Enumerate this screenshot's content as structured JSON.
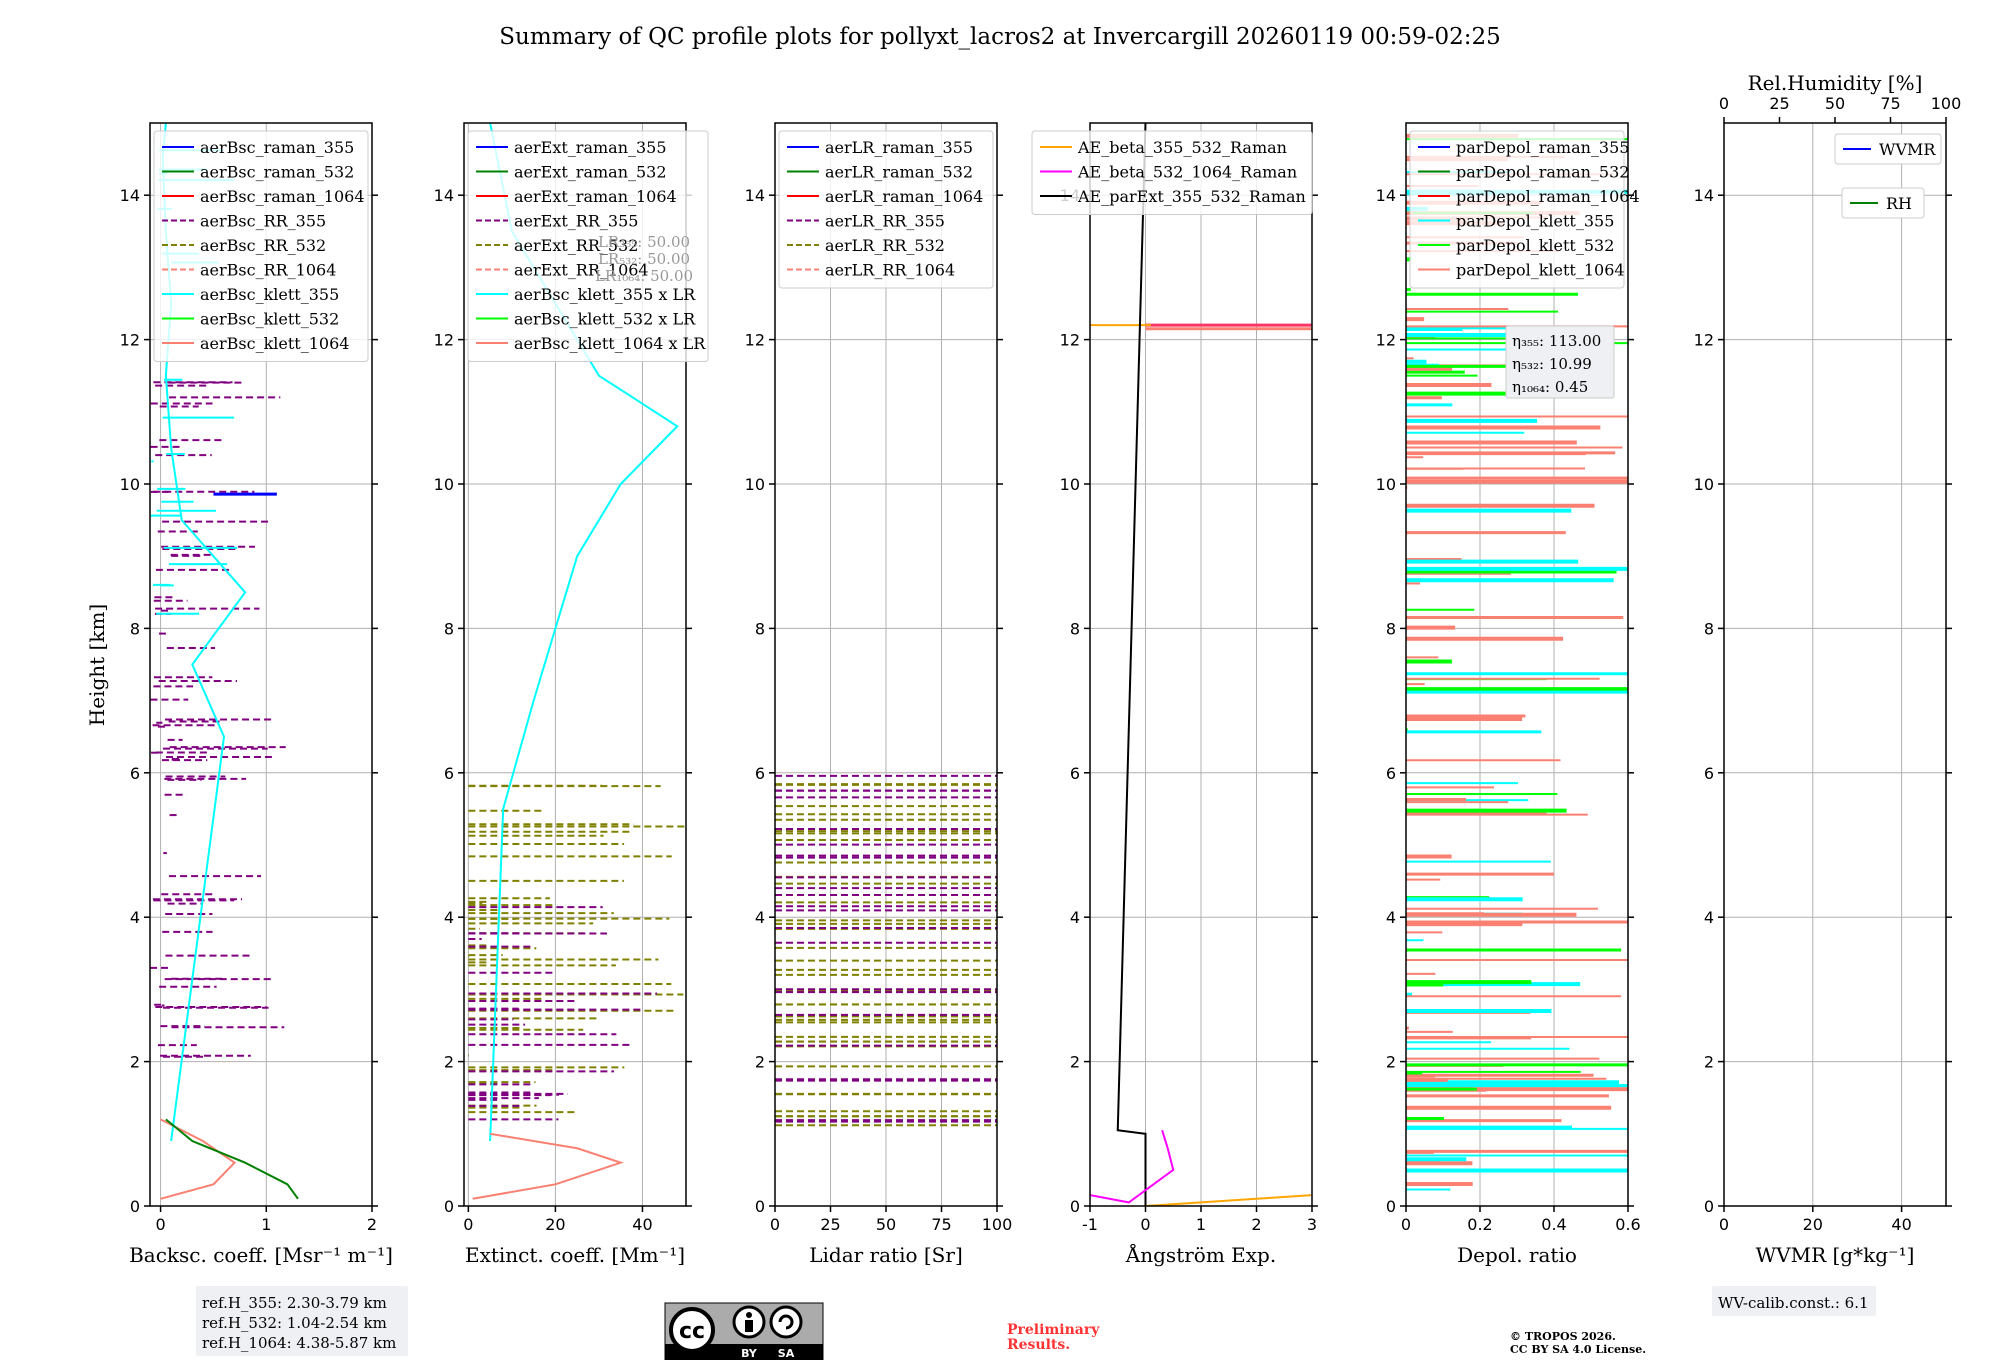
{
  "chart_data": {
    "type": "line",
    "title": "Summary of QC profile plots for pollyxt_lacros2 at Invercargill 20260119 00:59-02:25",
    "ylabel": "Height [km]",
    "ylim": [
      0,
      15
    ],
    "yticks": [
      0,
      2,
      4,
      6,
      8,
      10,
      12,
      14
    ],
    "grid": true,
    "panels": [
      {
        "id": "bsc",
        "xlabel": "Backsc. coeff. [Msr⁻¹ m⁻¹]",
        "xlim": [
          -0.1,
          2
        ],
        "xticks": [
          0,
          1,
          2
        ],
        "legend": [
          {
            "label": "aerBsc_raman_355",
            "color": "#0000ff",
            "dash": false
          },
          {
            "label": "aerBsc_raman_532",
            "color": "#008000",
            "dash": false
          },
          {
            "label": "aerBsc_raman_1064",
            "color": "#ff0000",
            "dash": false
          },
          {
            "label": "aerBsc_RR_355",
            "color": "#800080",
            "dash": true
          },
          {
            "label": "aerBsc_RR_532",
            "color": "#808000",
            "dash": true
          },
          {
            "label": "aerBsc_RR_1064",
            "color": "#fa8072",
            "dash": true
          },
          {
            "label": "aerBsc_klett_355",
            "color": "#00ffff",
            "dash": false
          },
          {
            "label": "aerBsc_klett_532",
            "color": "#00ff00",
            "dash": false
          },
          {
            "label": "aerBsc_klett_1064",
            "color": "#fa8072",
            "dash": false
          }
        ],
        "series": [
          {
            "name": "aerBsc_klett_355",
            "color": "#00ffff",
            "x": [
              0.1,
              0.6,
              0.3,
              0.8,
              0.2,
              0.1,
              0.05,
              0.1,
              0.05,
              0.02,
              0.05
            ],
            "y": [
              0.9,
              6.5,
              7.5,
              8.5,
              9.5,
              10.5,
              11.5,
              12.5,
              13.5,
              14.5,
              15
            ]
          },
          {
            "name": "aerBsc_klett_1064",
            "color": "#fa8072",
            "x": [
              0.0,
              0.5,
              0.7,
              0.4,
              0.0
            ],
            "y": [
              0.1,
              0.3,
              0.6,
              0.9,
              1.2
            ]
          },
          {
            "name": "aerBsc_raman_532",
            "color": "#008000",
            "x": [
              1.3,
              1.2,
              0.8,
              0.3,
              0.05
            ],
            "y": [
              0.1,
              0.3,
              0.6,
              0.9,
              1.2
            ]
          }
        ],
        "annotation": {
          "lines": [
            "ref.H_355: 2.30-3.79 km",
            "ref.H_532: 1.04-2.54 km",
            "ref.H_1064: 4.38-5.87 km"
          ]
        }
      },
      {
        "id": "ext",
        "xlabel": "Extinct. coeff. [Mm⁻¹]",
        "xlim": [
          -1,
          50
        ],
        "xticks": [
          0,
          20,
          40
        ],
        "legend": [
          {
            "label": "aerExt_raman_355",
            "color": "#0000ff",
            "dash": false
          },
          {
            "label": "aerExt_raman_532",
            "color": "#008000",
            "dash": false
          },
          {
            "label": "aerExt_raman_1064",
            "color": "#ff0000",
            "dash": false
          },
          {
            "label": "aerExt_RR_355",
            "color": "#800080",
            "dash": true
          },
          {
            "label": "aerExt_RR_532",
            "color": "#808000",
            "dash": true
          },
          {
            "label": "aerExt_RR_1064",
            "color": "#fa8072",
            "dash": true
          },
          {
            "label": "aerBsc_klett_355 x LR",
            "color": "#00ffff",
            "dash": false
          },
          {
            "label": "aerBsc_klett_532 x LR",
            "color": "#00ff00",
            "dash": false
          },
          {
            "label": "aerBsc_klett_1064 x LR",
            "color": "#fa8072",
            "dash": false
          }
        ],
        "series": [
          {
            "name": "aerBsc_klett_355 x LR",
            "color": "#00ffff",
            "x": [
              5,
              8,
              15,
              20,
              25,
              35,
              48,
              30,
              20,
              10,
              5
            ],
            "y": [
              0.9,
              5.5,
              7,
              8,
              9,
              10,
              10.8,
              11.5,
              12.5,
              13.5,
              15
            ]
          },
          {
            "name": "aerBsc_klett_1064 x LR",
            "color": "#fa8072",
            "x": [
              1,
              20,
              35,
              25,
              5
            ],
            "y": [
              0.1,
              0.3,
              0.6,
              0.8,
              1.0
            ]
          }
        ],
        "lr_labels": [
          "LR₃₅₅: 50.00",
          "LR₅₃₂: 50.00",
          "LR₁₀₆₄: 50.00"
        ]
      },
      {
        "id": "lr",
        "xlabel": "Lidar ratio [Sr]",
        "xlim": [
          0,
          100
        ],
        "xticks": [
          0,
          25,
          50,
          75,
          100
        ],
        "legend": [
          {
            "label": "aerLR_raman_355",
            "color": "#0000ff",
            "dash": false
          },
          {
            "label": "aerLR_raman_532",
            "color": "#008000",
            "dash": false
          },
          {
            "label": "aerLR_raman_1064",
            "color": "#ff0000",
            "dash": false
          },
          {
            "label": "aerLR_RR_355",
            "color": "#800080",
            "dash": true
          },
          {
            "label": "aerLR_RR_532",
            "color": "#808000",
            "dash": true
          },
          {
            "label": "aerLR_RR_1064",
            "color": "#fa8072",
            "dash": true
          }
        ],
        "series": []
      },
      {
        "id": "ae",
        "xlabel": "Ångström Exp.",
        "xlim": [
          -1,
          3
        ],
        "xticks": [
          -1,
          0,
          1,
          2,
          3
        ],
        "legend": [
          {
            "label": "AE_beta_355_532_Raman",
            "color": "#ffa500",
            "dash": false
          },
          {
            "label": "AE_beta_532_1064_Raman",
            "color": "#ff00ff",
            "dash": false
          },
          {
            "label": "AE_parExt_355_532_Raman",
            "color": "#000000",
            "dash": false
          }
        ],
        "series": [
          {
            "name": "AE_parExt_355_532_Raman",
            "color": "#000000",
            "x": [
              0,
              0,
              -0.5,
              0
            ],
            "y": [
              0,
              1.0,
              1.05,
              15
            ]
          },
          {
            "name": "AE_beta_532_1064_Raman",
            "color": "#ff00ff",
            "x": [
              -1,
              -0.3,
              0.5,
              0.4,
              0.3
            ],
            "y": [
              0.15,
              0.05,
              0.5,
              0.8,
              1.05
            ]
          },
          {
            "name": "AE_beta_355_532_Raman",
            "color": "#ffa500",
            "x": [
              0,
              1,
              2,
              3
            ],
            "y": [
              0,
              0.05,
              0.1,
              0.15
            ]
          }
        ]
      },
      {
        "id": "depol",
        "xlabel": "Depol. ratio",
        "xlim": [
          0,
          0.6
        ],
        "xticks": [
          0.0,
          0.2,
          0.4,
          0.6
        ],
        "legend": [
          {
            "label": "parDepol_raman_355",
            "color": "#0000ff",
            "dash": false
          },
          {
            "label": "parDepol_raman_532",
            "color": "#008000",
            "dash": false
          },
          {
            "label": "parDepol_raman_1064",
            "color": "#ff0000",
            "dash": false
          },
          {
            "label": "parDepol_klett_355",
            "color": "#00ffff",
            "dash": false
          },
          {
            "label": "parDepol_klett_532",
            "color": "#00ff00",
            "dash": false
          },
          {
            "label": "parDepol_klett_1064",
            "color": "#fa8072",
            "dash": false
          }
        ],
        "series": [],
        "eta_labels": [
          "η₃₅₅: 113.00",
          "η₅₃₂: 10.99",
          "η₁₀₆₄: 0.45"
        ]
      },
      {
        "id": "wvmr",
        "xlabel": "WVMR [g*kg⁻¹]",
        "xlim": [
          0,
          50
        ],
        "xticks": [
          0,
          20,
          40
        ],
        "top_xlabel": "Rel.Humidity [%]",
        "top_xlim": [
          0,
          100
        ],
        "top_xticks": [
          0,
          25,
          50,
          75,
          100
        ],
        "legend": [
          {
            "label": "WVMR",
            "color": "#0000ff",
            "dash": false
          },
          {
            "label": "RH",
            "color": "#008000",
            "dash": false
          }
        ],
        "series": [],
        "annotation": {
          "lines": [
            "WV-calib.const.: 6.1"
          ]
        }
      }
    ]
  },
  "footer": {
    "preliminary": [
      "Preliminary",
      "Results."
    ],
    "copyright": [
      "© TROPOS 2026.",
      "CC BY SA 4.0 License."
    ],
    "cc_badge": [
      "BY",
      "SA"
    ],
    "cc_label": "cc"
  },
  "colors": {
    "preliminary": "#ff3333",
    "grid": "#b0b0b0",
    "annotation_bg": "#eef0f4"
  }
}
